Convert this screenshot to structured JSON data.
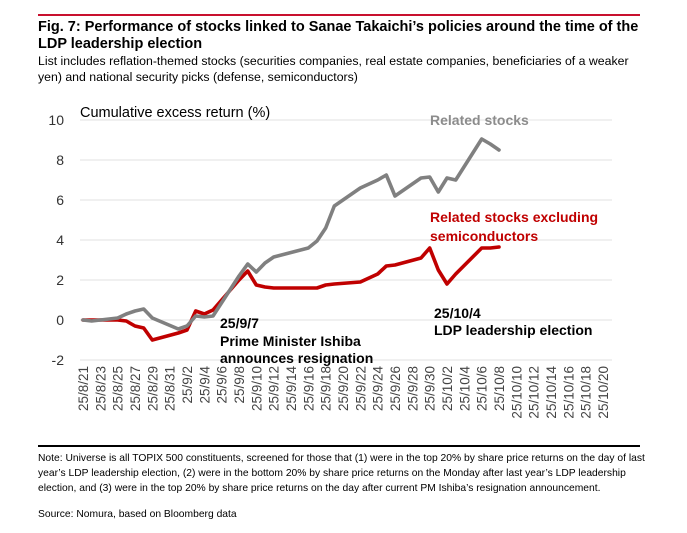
{
  "header": {
    "title": "Fig. 7: Performance of stocks linked to Sanae Takaichi’s policies around the time of the LDP leadership election",
    "subtitle": "List includes reflation-themed stocks (securities companies, real estate companies, beneficiaries of a weaker yen) and national security picks (defense, semiconductors)"
  },
  "footer": {
    "note": "Note: Universe is all TOPIX 500 constituents, screened for those that (1) were in the top 20% by share price returns on the day of last year’s LDP leadership election, (2) were in the bottom 20% by share price returns on the Monday after last year’s LDP leadership election, and (3) were in the top 20% by share price returns on the day after current PM Ishiba’s resignation announcement.",
    "source": "Source: Nomura, based on Bloomberg data"
  },
  "chart_data": {
    "type": "line",
    "title": "Fig. 7: Performance of stocks linked to Sanae Takaichi’s policies around the time of the LDP leadership election",
    "ylabel": "Cumulative excess return (%)",
    "xlabel": "",
    "ylim": [
      -2,
      10
    ],
    "yticks": [
      10,
      8,
      6,
      4,
      2,
      0,
      -2
    ],
    "grid": true,
    "x_range": [
      "2025-08-21",
      "2025-10-20"
    ],
    "xtick_labels": [
      "25/8/21",
      "25/8/23",
      "25/8/25",
      "25/8/27",
      "25/8/29",
      "25/8/31",
      "25/9/2",
      "25/9/4",
      "25/9/6",
      "25/9/8",
      "25/9/10",
      "25/9/12",
      "25/9/14",
      "25/9/16",
      "25/9/18",
      "25/9/20",
      "25/9/22",
      "25/9/24",
      "25/9/26",
      "25/9/28",
      "25/9/30",
      "25/10/2",
      "25/10/4",
      "25/10/6",
      "25/10/8",
      "25/10/10",
      "25/10/12",
      "25/10/14",
      "25/10/16",
      "25/10/18",
      "25/10/20"
    ],
    "x": [
      "2025-08-21",
      "2025-08-22",
      "2025-08-25",
      "2025-08-26",
      "2025-08-27",
      "2025-08-28",
      "2025-08-29",
      "2025-09-01",
      "2025-09-02",
      "2025-09-03",
      "2025-09-04",
      "2025-09-05",
      "2025-09-08",
      "2025-09-09",
      "2025-09-10",
      "2025-09-11",
      "2025-09-12",
      "2025-09-16",
      "2025-09-17",
      "2025-09-18",
      "2025-09-19",
      "2025-09-22",
      "2025-09-24",
      "2025-09-25",
      "2025-09-26",
      "2025-09-29",
      "2025-09-30",
      "2025-10-01",
      "2025-10-02",
      "2025-10-03",
      "2025-10-06",
      "2025-10-07",
      "2025-10-08"
    ],
    "series": [
      {
        "name": "Related stocks",
        "color": "#808080",
        "values": [
          0.0,
          -0.05,
          0.1,
          0.3,
          0.45,
          0.55,
          0.1,
          -0.45,
          -0.3,
          0.2,
          0.15,
          0.2,
          2.2,
          2.8,
          2.4,
          2.85,
          3.15,
          3.6,
          3.95,
          4.6,
          5.7,
          6.6,
          7.0,
          7.25,
          6.2,
          7.1,
          7.15,
          6.4,
          7.1,
          7.0,
          9.05,
          8.8,
          8.5
        ]
      },
      {
        "name": "Related stocks excluding semiconductors",
        "color": "#c00000",
        "values": [
          0.0,
          0.0,
          0.0,
          -0.05,
          -0.3,
          -0.4,
          -1.0,
          -0.65,
          -0.5,
          0.45,
          0.3,
          0.5,
          2.0,
          2.45,
          1.75,
          1.65,
          1.6,
          1.6,
          1.6,
          1.75,
          1.8,
          1.9,
          2.3,
          2.7,
          2.75,
          3.1,
          3.6,
          2.5,
          1.8,
          2.3,
          3.6,
          3.6,
          3.65
        ]
      }
    ],
    "legend": [
      {
        "label": "Related stocks",
        "placement": "top-right, inline near series end"
      },
      {
        "label": "Related stocks excluding semiconductors",
        "placement": "right, above red series end"
      }
    ],
    "annotations": [
      {
        "date": "2025-09-07",
        "lines": [
          "25/9/7",
          "Prime Minister Ishiba",
          "announces resignation"
        ]
      },
      {
        "date": "2025-10-04",
        "lines": [
          "25/10/4",
          "LDP leadership election"
        ]
      }
    ]
  }
}
